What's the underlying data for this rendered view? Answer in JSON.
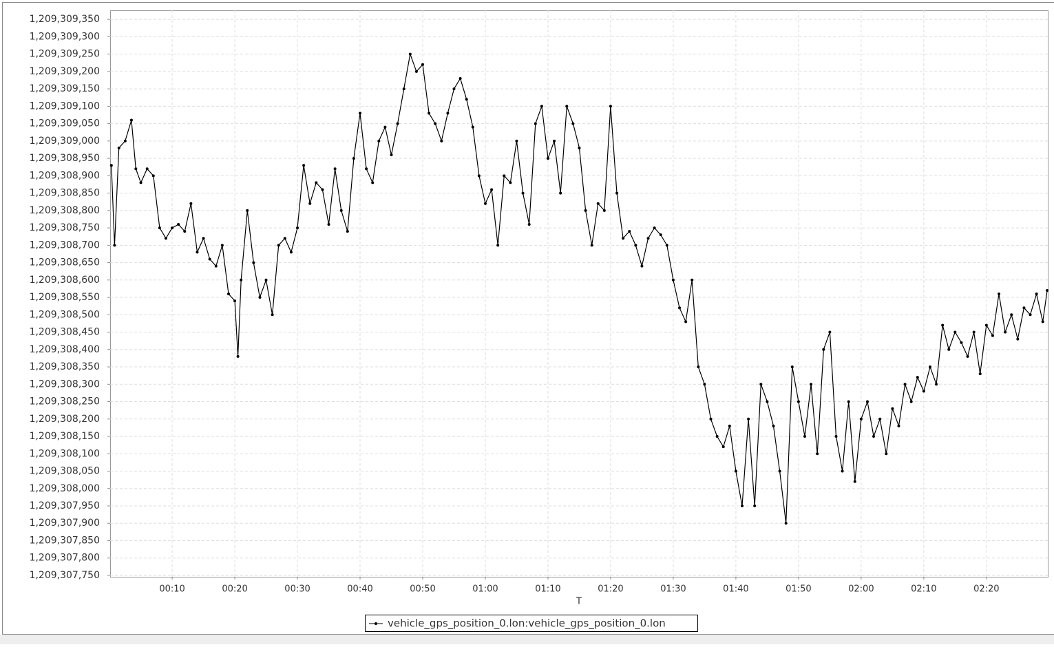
{
  "chart_data": {
    "type": "line",
    "x_label": "T",
    "x": [
      0.3,
      0.8,
      1.5,
      2.5,
      3.5,
      4.2,
      5,
      6,
      7,
      8,
      9,
      10,
      11,
      12,
      13,
      14,
      15,
      16,
      17,
      18,
      19,
      20,
      20.5,
      21,
      22,
      23,
      24,
      25,
      26,
      27,
      28,
      29,
      30,
      31,
      32,
      33,
      34,
      35,
      36,
      37,
      38,
      39,
      40,
      41,
      42,
      43,
      44,
      45,
      46,
      47,
      48,
      49,
      50,
      51,
      52,
      53,
      54,
      55,
      56,
      57,
      58,
      59,
      60,
      61,
      62,
      63,
      64,
      65,
      66,
      67,
      68,
      69,
      70,
      71,
      72,
      73,
      74,
      75,
      76,
      77,
      78,
      79,
      80,
      81,
      82,
      83,
      84,
      85,
      86,
      87,
      88,
      89,
      90,
      91,
      92,
      93,
      94,
      95,
      96,
      97,
      98,
      99,
      100,
      101,
      102,
      103,
      104,
      105,
      106,
      107,
      108,
      109,
      110,
      111,
      112,
      113,
      114,
      115,
      116,
      117,
      118,
      119,
      120,
      121,
      122,
      123,
      124,
      125,
      126,
      127,
      128,
      129,
      130,
      131,
      132,
      133,
      134,
      135,
      136,
      137,
      138,
      139,
      140,
      141,
      142,
      143,
      144,
      145,
      146,
      147,
      148,
      149,
      149.7
    ],
    "series": [
      {
        "name": "vehicle_gps_position_0.lon:vehicle_gps_position_0.lon",
        "color": "#000000",
        "values": [
          1209308930,
          1209308700,
          1209308980,
          1209309000,
          1209309060,
          1209308920,
          1209308880,
          1209308920,
          1209308900,
          1209308750,
          1209308720,
          1209308750,
          1209308760,
          1209308740,
          1209308820,
          1209308680,
          1209308720,
          1209308660,
          1209308640,
          1209308700,
          1209308560,
          1209308540,
          1209308380,
          1209308600,
          1209308800,
          1209308650,
          1209308550,
          1209308600,
          1209308500,
          1209308700,
          1209308720,
          1209308680,
          1209308750,
          1209308930,
          1209308820,
          1209308880,
          1209308860,
          1209308760,
          1209308920,
          1209308800,
          1209308740,
          1209308950,
          1209309080,
          1209308920,
          1209308880,
          1209309000,
          1209309040,
          1209308960,
          1209309050,
          1209309150,
          1209309250,
          1209309200,
          1209309220,
          1209309080,
          1209309050,
          1209309000,
          1209309080,
          1209309150,
          1209309180,
          1209309120,
          1209309040,
          1209308900,
          1209308820,
          1209308860,
          1209308700,
          1209308900,
          1209308880,
          1209309000,
          1209308850,
          1209308760,
          1209309050,
          1209309100,
          1209308950,
          1209309000,
          1209308850,
          1209309100,
          1209309050,
          1209308980,
          1209308800,
          1209308700,
          1209308820,
          1209308800,
          1209309100,
          1209308850,
          1209308720,
          1209308740,
          1209308700,
          1209308640,
          1209308720,
          1209308750,
          1209308730,
          1209308700,
          1209308600,
          1209308520,
          1209308480,
          1209308600,
          1209308350,
          1209308300,
          1209308200,
          1209308150,
          1209308120,
          1209308180,
          1209308050,
          1209307950,
          1209308200,
          1209307950,
          1209308300,
          1209308250,
          1209308180,
          1209308050,
          1209307900,
          1209308350,
          1209308250,
          1209308150,
          1209308300,
          1209308100,
          1209308400,
          1209308450,
          1209308150,
          1209308050,
          1209308250,
          1209308020,
          1209308200,
          1209308250,
          1209308150,
          1209308200,
          1209308100,
          1209308230,
          1209308180,
          1209308300,
          1209308250,
          1209308320,
          1209308280,
          1209308350,
          1209308300,
          1209308470,
          1209308400,
          1209308450,
          1209308420,
          1209308380,
          1209308450,
          1209308330,
          1209308470,
          1209308440,
          1209308560,
          1209308450,
          1209308500,
          1209308430,
          1209308520,
          1209308500,
          1209308560,
          1209308480,
          1209308570
        ]
      }
    ],
    "xlim": [
      0.1,
      149.8
    ],
    "xticks": [
      {
        "value": 10,
        "label": "00:10"
      },
      {
        "value": 20,
        "label": "00:20"
      },
      {
        "value": 30,
        "label": "00:30"
      },
      {
        "value": 40,
        "label": "00:40"
      },
      {
        "value": 50,
        "label": "00:50"
      },
      {
        "value": 60,
        "label": "01:00"
      },
      {
        "value": 70,
        "label": "01:10"
      },
      {
        "value": 80,
        "label": "01:20"
      },
      {
        "value": 90,
        "label": "01:30"
      },
      {
        "value": 100,
        "label": "01:40"
      },
      {
        "value": 110,
        "label": "01:50"
      },
      {
        "value": 120,
        "label": "02:00"
      },
      {
        "value": 130,
        "label": "02:10"
      },
      {
        "value": 140,
        "label": "02:20"
      }
    ],
    "ylim": [
      1209307746,
      1209309376
    ],
    "yticks": [
      {
        "value": 1209307750,
        "label": "1,209,307,750"
      },
      {
        "value": 1209307800,
        "label": "1,209,307,800"
      },
      {
        "value": 1209307850,
        "label": "1,209,307,850"
      },
      {
        "value": 1209307900,
        "label": "1,209,307,900"
      },
      {
        "value": 1209307950,
        "label": "1,209,307,950"
      },
      {
        "value": 1209308000,
        "label": "1,209,308,000"
      },
      {
        "value": 1209308050,
        "label": "1,209,308,050"
      },
      {
        "value": 1209308100,
        "label": "1,209,308,100"
      },
      {
        "value": 1209308150,
        "label": "1,209,308,150"
      },
      {
        "value": 1209308200,
        "label": "1,209,308,200"
      },
      {
        "value": 1209308250,
        "label": "1,209,308,250"
      },
      {
        "value": 1209308300,
        "label": "1,209,308,300"
      },
      {
        "value": 1209308350,
        "label": "1,209,308,350"
      },
      {
        "value": 1209308400,
        "label": "1,209,308,400"
      },
      {
        "value": 1209308450,
        "label": "1,209,308,450"
      },
      {
        "value": 1209308500,
        "label": "1,209,308,500"
      },
      {
        "value": 1209308550,
        "label": "1,209,308,550"
      },
      {
        "value": 1209308600,
        "label": "1,209,308,600"
      },
      {
        "value": 1209308650,
        "label": "1,209,308,650"
      },
      {
        "value": 1209308700,
        "label": "1,209,308,700"
      },
      {
        "value": 1209308750,
        "label": "1,209,308,750"
      },
      {
        "value": 1209308800,
        "label": "1,209,308,800"
      },
      {
        "value": 1209308850,
        "label": "1,209,308,850"
      },
      {
        "value": 1209308900,
        "label": "1,209,308,900"
      },
      {
        "value": 1209308950,
        "label": "1,209,308,950"
      },
      {
        "value": 1209309000,
        "label": "1,209,309,000"
      },
      {
        "value": 1209309050,
        "label": "1,209,309,050"
      },
      {
        "value": 1209309100,
        "label": "1,209,309,100"
      },
      {
        "value": 1209309150,
        "label": "1,209,309,150"
      },
      {
        "value": 1209309200,
        "label": "1,209,309,200"
      },
      {
        "value": 1209309250,
        "label": "1,209,309,250"
      },
      {
        "value": 1209309300,
        "label": "1,209,309,300"
      },
      {
        "value": 1209309350,
        "label": "1,209,309,350"
      }
    ],
    "grid": true,
    "legend": "bottom"
  }
}
